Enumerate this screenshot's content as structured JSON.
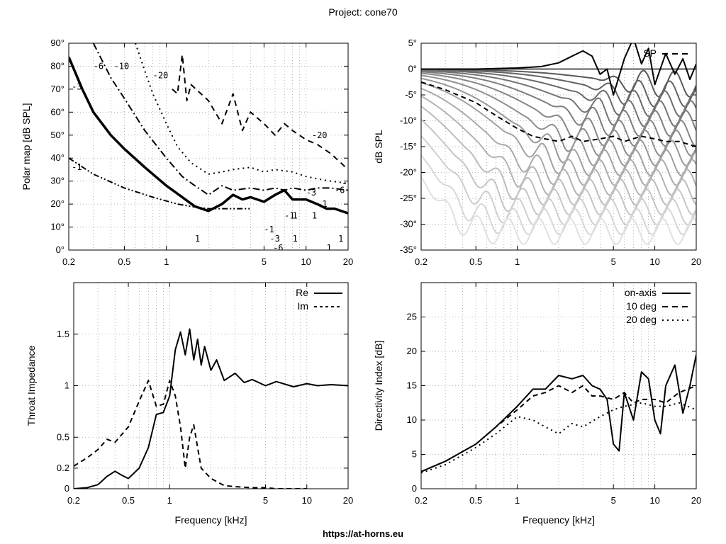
{
  "page": {
    "title": "Project: cone70",
    "footer": "https://at-horns.eu"
  },
  "chart_data": [
    {
      "id": "polar",
      "type": "contour",
      "xlabel": "",
      "ylabel": "Polar map [dB SPL]",
      "xscale": "log",
      "xlim": [
        0.2,
        20
      ],
      "ylim": [
        0,
        90
      ],
      "xticks": [
        0.2,
        0.5,
        1,
        5,
        10,
        20
      ],
      "xticklabels": [
        "0.2",
        "0.5",
        "1",
        "5",
        "10",
        "20"
      ],
      "yticks": [
        0,
        10,
        20,
        30,
        40,
        50,
        60,
        70,
        80,
        90
      ],
      "yticklabels": [
        "0°",
        "10°",
        "20°",
        "30°",
        "40°",
        "50°",
        "60°",
        "70°",
        "80°",
        "90°"
      ],
      "contours": [
        {
          "level": "-1",
          "style": "dash-dot-dot",
          "x": [
            0.2,
            0.3,
            0.5,
            0.8,
            1.2,
            1.5,
            2,
            3,
            4
          ],
          "y": [
            40,
            33,
            27,
            23,
            20,
            19,
            18,
            18,
            18
          ]
        },
        {
          "level": "-3",
          "style": "thick",
          "x": [
            0.2,
            0.25,
            0.3,
            0.4,
            0.5,
            0.7,
            1,
            1.3,
            1.6,
            2,
            2.5,
            3,
            3.5,
            4,
            5,
            6,
            7,
            8,
            10,
            12,
            14,
            16,
            20
          ],
          "y": [
            84,
            70,
            60,
            50,
            44,
            36,
            28,
            23,
            19,
            17,
            20,
            24,
            22,
            23,
            21,
            24,
            26,
            22,
            22,
            20,
            18,
            18,
            16
          ]
        },
        {
          "level": "-6",
          "style": "dash-dot",
          "x": [
            0.3,
            0.4,
            0.5,
            0.7,
            1,
            1.3,
            1.6,
            2,
            2.5,
            3,
            4,
            5,
            6,
            7,
            8,
            10,
            12,
            15,
            20
          ],
          "y": [
            90,
            75,
            66,
            52,
            40,
            32,
            28,
            24,
            28,
            26,
            27,
            26,
            27,
            26,
            27,
            26,
            27,
            27,
            26
          ]
        },
        {
          "level": "-10",
          "style": "dotted",
          "x": [
            0.6,
            0.7,
            0.8,
            1,
            1.2,
            1.5,
            2,
            2.5,
            3,
            4,
            5,
            6,
            8,
            10,
            12,
            15,
            20
          ],
          "y": [
            90,
            78,
            68,
            55,
            45,
            38,
            33,
            34,
            35,
            36,
            34,
            35,
            34,
            32,
            31,
            30,
            29
          ]
        },
        {
          "level": "-20",
          "style": "dashed",
          "x": [
            1.1,
            1.2,
            1.3,
            1.4,
            1.5,
            2,
            2.5,
            3,
            3.5,
            4,
            5,
            6,
            7,
            8,
            10,
            12,
            15,
            20
          ],
          "y": [
            70,
            68,
            85,
            65,
            72,
            65,
            55,
            68,
            52,
            60,
            55,
            50,
            55,
            52,
            48,
            46,
            42,
            35
          ]
        }
      ],
      "contour_labels": [
        {
          "text": "-3",
          "x": 0.21,
          "y": 71
        },
        {
          "text": "-1",
          "x": 0.21,
          "y": 36
        },
        {
          "text": "-6",
          "x": 0.3,
          "y": 80
        },
        {
          "text": "-10",
          "x": 0.42,
          "y": 80
        },
        {
          "text": "-20",
          "x": 0.8,
          "y": 76
        },
        {
          "text": "-20",
          "x": 11,
          "y": 50
        },
        {
          "text": "-10",
          "x": 18,
          "y": 29
        },
        {
          "text": "-6",
          "x": 16,
          "y": 26
        },
        {
          "text": "-3",
          "x": 10,
          "y": 25
        },
        {
          "text": "-1",
          "x": 12,
          "y": 20
        },
        {
          "text": "-1",
          "x": 7,
          "y": 15
        },
        {
          "text": "1",
          "x": 8,
          "y": 15
        },
        {
          "text": "1",
          "x": 11,
          "y": 15
        },
        {
          "text": "-1",
          "x": 5,
          "y": 9
        },
        {
          "text": "1",
          "x": 1.6,
          "y": 5
        },
        {
          "text": "-3",
          "x": 5.5,
          "y": 5
        },
        {
          "text": "1",
          "x": 8,
          "y": 5
        },
        {
          "text": "1",
          "x": 17,
          "y": 5
        },
        {
          "text": "-6",
          "x": 5.8,
          "y": 1
        },
        {
          "text": "1",
          "x": 14,
          "y": 1
        }
      ]
    },
    {
      "id": "spl",
      "type": "line",
      "xlabel": "",
      "ylabel": "dB SPL",
      "xscale": "log",
      "xlim": [
        0.2,
        20
      ],
      "ylim": [
        -35,
        5
      ],
      "xticks": [
        0.2,
        0.5,
        1,
        5,
        10,
        20
      ],
      "xticklabels": [
        "0.2",
        "0.5",
        "1",
        "5",
        "10",
        "20"
      ],
      "yticks": [
        5,
        0,
        -5,
        -10,
        -15,
        -20,
        -25,
        -30,
        -35
      ],
      "yticklabels": [
        "5°",
        "0°",
        "-5°",
        "-10°",
        "-15°",
        "-20°",
        "-25°",
        "-30°",
        "-35°"
      ],
      "legend": [
        {
          "name": "SP",
          "style": "dashed"
        }
      ],
      "legend_position": "top-right",
      "series": [
        {
          "name": "on-axis",
          "style": "solid-black",
          "x": [
            0.2,
            0.5,
            1,
            1.5,
            2,
            2.5,
            3,
            3.5,
            4,
            4.5,
            5,
            6,
            7,
            8,
            9,
            10,
            12,
            14,
            16,
            18,
            20
          ],
          "y": [
            0,
            0,
            0.2,
            0.5,
            1.2,
            2.5,
            3.5,
            2.5,
            -1,
            0,
            -5,
            2,
            6,
            1,
            4,
            -3,
            3,
            -1,
            2,
            -2,
            1
          ]
        },
        {
          "name": "SP",
          "style": "dashed-black",
          "x": [
            0.2,
            0.3,
            0.5,
            0.7,
            1,
            1.3,
            1.6,
            2,
            2.5,
            3,
            4,
            5,
            6,
            8,
            10,
            12,
            15,
            20
          ],
          "y": [
            -2.5,
            -4,
            -6.5,
            -9,
            -11.5,
            -13,
            -13.5,
            -14,
            -13,
            -14,
            -13.5,
            -13,
            -14,
            -13,
            -13.5,
            -14,
            -14,
            -15
          ]
        }
      ]
    },
    {
      "id": "impedance",
      "type": "line",
      "xlabel": "Frequency [kHz]",
      "ylabel": "Throat Impedance",
      "xscale": "log",
      "xlim": [
        0.2,
        20
      ],
      "ylim": [
        0,
        2
      ],
      "xticks": [
        0.2,
        0.5,
        1,
        5,
        10,
        20
      ],
      "xticklabels": [
        "0.2",
        "0.5",
        "1",
        "5",
        "10",
        "20"
      ],
      "yticks": [
        0,
        0.2,
        0.5,
        1,
        1.5
      ],
      "yticklabels": [
        "0",
        "0.2",
        "0.5",
        "1",
        "1.5"
      ],
      "legend": [
        {
          "name": "Re",
          "style": "solid"
        },
        {
          "name": "Im",
          "style": "dashed"
        }
      ],
      "legend_position": "top-right",
      "series": [
        {
          "name": "Re",
          "style": "solid-black",
          "x": [
            0.2,
            0.25,
            0.3,
            0.35,
            0.4,
            0.45,
            0.5,
            0.6,
            0.7,
            0.8,
            0.9,
            1,
            1.1,
            1.2,
            1.3,
            1.4,
            1.5,
            1.6,
            1.7,
            1.8,
            2,
            2.2,
            2.5,
            3,
            3.5,
            4,
            5,
            6,
            8,
            10,
            12,
            15,
            20
          ],
          "y": [
            0,
            0.01,
            0.04,
            0.12,
            0.17,
            0.13,
            0.1,
            0.2,
            0.4,
            0.72,
            0.74,
            0.9,
            1.35,
            1.52,
            1.3,
            1.55,
            1.25,
            1.45,
            1.2,
            1.38,
            1.15,
            1.25,
            1.05,
            1.12,
            1.03,
            1.06,
            1.0,
            1.04,
            0.99,
            1.02,
            1.0,
            1.01,
            1.0
          ]
        },
        {
          "name": "Im",
          "style": "dashed-black",
          "x": [
            0.2,
            0.25,
            0.3,
            0.35,
            0.4,
            0.5,
            0.6,
            0.7,
            0.8,
            0.9,
            1,
            1.1,
            1.2,
            1.3,
            1.4,
            1.5,
            1.6,
            1.7,
            2,
            2.5,
            3,
            4,
            5,
            6,
            8,
            10
          ],
          "y": [
            0.22,
            0.3,
            0.38,
            0.48,
            0.45,
            0.6,
            0.85,
            1.05,
            0.8,
            0.82,
            1.05,
            0.9,
            0.6,
            0.2,
            0.5,
            0.62,
            0.4,
            0.2,
            0.1,
            0.03,
            0.02,
            0.01,
            0.01,
            0.0,
            0.0,
            0.0
          ]
        }
      ]
    },
    {
      "id": "di",
      "type": "line",
      "xlabel": "Frequency [kHz]",
      "ylabel": "Directivity Index [dB]",
      "xscale": "log",
      "xlim": [
        0.2,
        20
      ],
      "ylim": [
        0,
        30
      ],
      "xticks": [
        0.2,
        0.5,
        1,
        5,
        10,
        20
      ],
      "xticklabels": [
        "0.2",
        "0.5",
        "1",
        "5",
        "10",
        "20"
      ],
      "yticks": [
        0,
        5,
        10,
        15,
        20,
        25
      ],
      "yticklabels": [
        "0",
        "5",
        "10",
        "15",
        "20",
        "25"
      ],
      "legend": [
        {
          "name": "on-axis",
          "style": "solid"
        },
        {
          "name": "10 deg",
          "style": "dashed"
        },
        {
          "name": "20 deg",
          "style": "dotted"
        }
      ],
      "legend_position": "top-right",
      "series": [
        {
          "name": "on-axis",
          "style": "solid-black",
          "x": [
            0.2,
            0.3,
            0.5,
            0.7,
            1,
            1.3,
            1.6,
            2,
            2.5,
            3,
            3.5,
            4,
            4.5,
            5,
            5.5,
            6,
            7,
            8,
            9,
            10,
            11,
            12,
            14,
            16,
            18,
            20
          ],
          "y": [
            2.5,
            4,
            6.5,
            9,
            12,
            14.5,
            14.5,
            16.5,
            16,
            16.5,
            15,
            14.5,
            13,
            6.5,
            5.5,
            14,
            10,
            17,
            16,
            10,
            8,
            15,
            18,
            11,
            15,
            19.5
          ]
        },
        {
          "name": "10 deg",
          "style": "dashed-black",
          "x": [
            0.2,
            0.3,
            0.5,
            0.7,
            1,
            1.3,
            1.6,
            2,
            2.5,
            3,
            3.5,
            4,
            5,
            6,
            7,
            8,
            10,
            12,
            15,
            20
          ],
          "y": [
            2.5,
            4,
            6.5,
            9,
            11.5,
            13.5,
            14,
            15,
            14,
            15,
            13.5,
            13.5,
            13,
            14,
            12.5,
            13,
            13,
            12.5,
            14,
            15
          ]
        },
        {
          "name": "20 deg",
          "style": "dotted-black",
          "x": [
            0.2,
            0.3,
            0.5,
            0.7,
            1,
            1.3,
            1.6,
            2,
            2.5,
            3,
            4,
            5,
            6,
            8,
            10,
            12,
            15,
            20
          ],
          "y": [
            2.3,
            3.5,
            6,
            8,
            10.5,
            10,
            9,
            8,
            9.5,
            9,
            10.5,
            11.5,
            12,
            12.5,
            12,
            12,
            12.5,
            11.5
          ]
        }
      ]
    }
  ]
}
